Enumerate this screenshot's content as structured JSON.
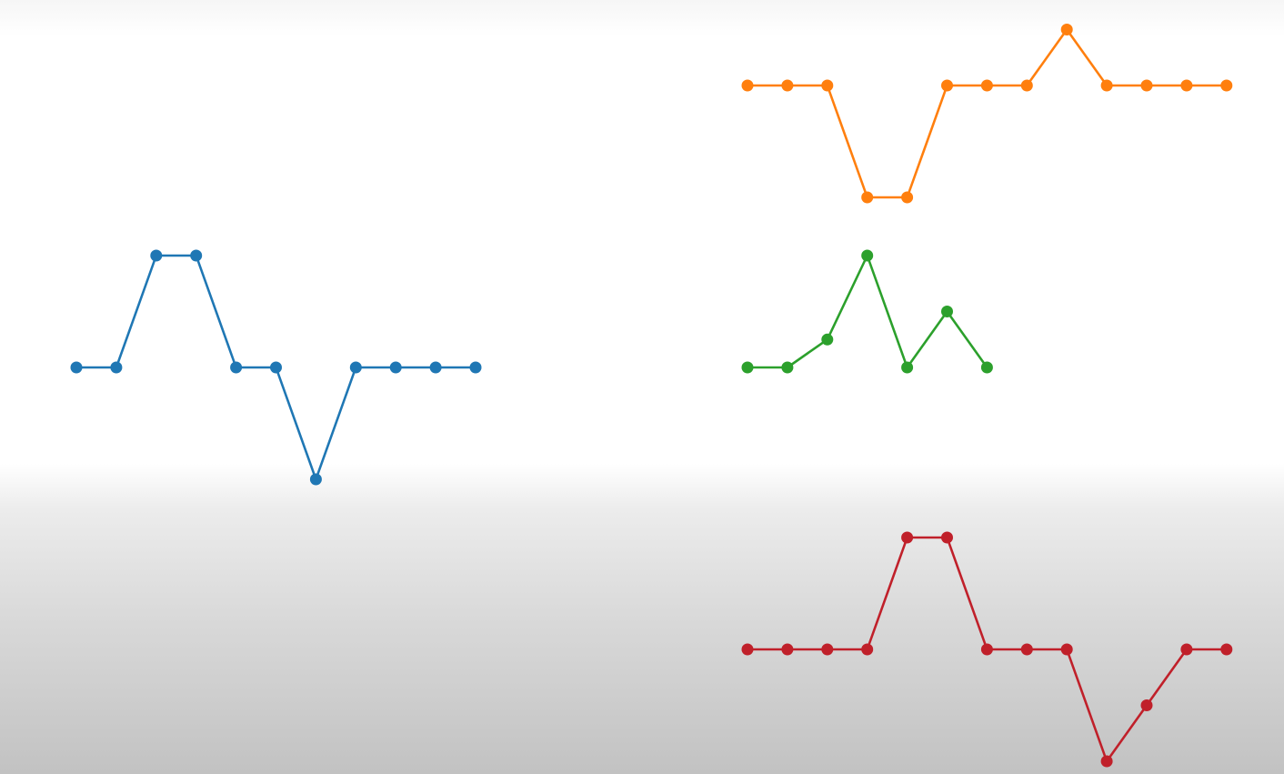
{
  "chart_data": [
    {
      "type": "line",
      "position": "left",
      "color": "#1f77b4",
      "markers": true,
      "x": [
        0,
        1,
        2,
        3,
        4,
        5,
        6,
        7,
        8,
        9,
        10
      ],
      "y": [
        0,
        0,
        1,
        1,
        0,
        0,
        -1,
        0,
        0,
        0,
        0
      ]
    },
    {
      "type": "line",
      "position": "top-right",
      "color": "#ff7f0e",
      "markers": true,
      "x": [
        0,
        1,
        2,
        3,
        4,
        5,
        6,
        7,
        8,
        9,
        10,
        11,
        12
      ],
      "y": [
        0,
        0,
        0,
        -1,
        -1,
        0,
        0,
        0,
        0.5,
        0,
        0,
        0,
        0
      ]
    },
    {
      "type": "line",
      "position": "middle-right",
      "color": "#2ca02c",
      "markers": true,
      "x": [
        0,
        1,
        2,
        3,
        4,
        5,
        6
      ],
      "y": [
        0,
        0,
        0.25,
        1,
        0,
        0.5,
        0
      ]
    },
    {
      "type": "line",
      "position": "bottom-right",
      "color": "#c0202a",
      "markers": true,
      "x": [
        0,
        1,
        2,
        3,
        4,
        5,
        6,
        7,
        8,
        9,
        10,
        11,
        12
      ],
      "y": [
        0,
        0,
        0,
        0,
        1,
        1,
        0,
        0,
        0,
        -1,
        -0.5,
        0,
        0
      ]
    }
  ]
}
